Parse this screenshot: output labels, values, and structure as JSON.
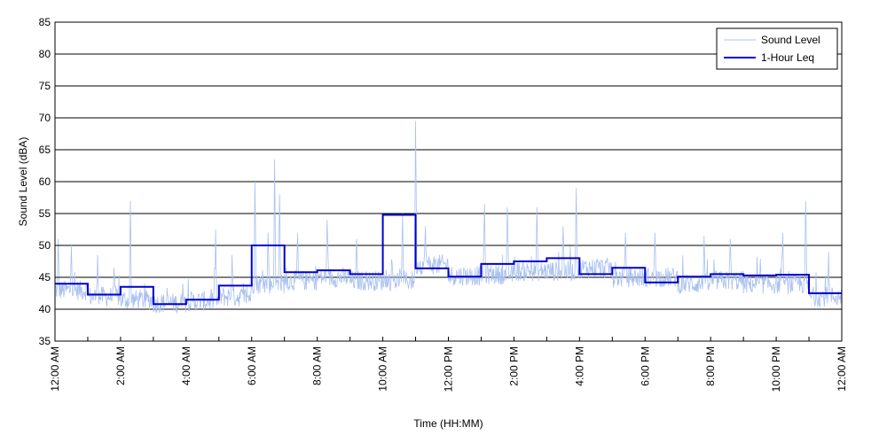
{
  "chart_data": {
    "type": "line",
    "xlabel": "Time (HH:MM)",
    "ylabel": "Sound Level (dBA)",
    "xlim": [
      0,
      24
    ],
    "ylim": [
      35,
      85
    ],
    "y_ticks": [
      35,
      40,
      45,
      50,
      55,
      60,
      65,
      70,
      75,
      80,
      85
    ],
    "x_ticks": [
      0,
      2,
      4,
      6,
      8,
      10,
      12,
      14,
      16,
      18,
      20,
      22,
      24
    ],
    "x_tick_labels": [
      "12:00 AM",
      "2:00 AM",
      "4:00 AM",
      "6:00 AM",
      "8:00 AM",
      "10:00 AM",
      "12:00 PM",
      "2:00 PM",
      "4:00 PM",
      "6:00 PM",
      "8:00 PM",
      "10:00 PM",
      "12:00 AM"
    ],
    "grid": "horizontal",
    "legend_position": "top-right",
    "series": [
      {
        "name": "Sound Level",
        "color": "#a9c0f0",
        "style": "thin-line",
        "hourly_base": [
          42.5,
          41.5,
          41.0,
          40.5,
          40.8,
          41.5,
          43.5,
          44.0,
          44.5,
          44.0,
          44.0,
          46.5,
          44.8,
          45.0,
          45.5,
          45.5,
          46.0,
          44.5,
          44.5,
          43.5,
          44.0,
          43.5,
          43.5,
          41.5
        ],
        "spikes": [
          [
            0.1,
            51
          ],
          [
            0.5,
            50
          ],
          [
            1.3,
            48.5
          ],
          [
            1.8,
            46.5
          ],
          [
            2.3,
            57
          ],
          [
            3.9,
            44
          ],
          [
            4.9,
            52.5
          ],
          [
            5.4,
            48.5
          ],
          [
            6.1,
            60
          ],
          [
            6.5,
            52
          ],
          [
            6.7,
            63.5
          ],
          [
            6.85,
            58
          ],
          [
            7.4,
            52
          ],
          [
            8.3,
            54
          ],
          [
            9.2,
            51
          ],
          [
            10.6,
            55
          ],
          [
            11.0,
            69.5
          ],
          [
            11.3,
            53
          ],
          [
            13.1,
            56.5
          ],
          [
            13.8,
            56
          ],
          [
            14.7,
            56
          ],
          [
            15.5,
            53
          ],
          [
            15.9,
            59
          ],
          [
            17.4,
            52
          ],
          [
            18.3,
            52
          ],
          [
            19.8,
            51.5
          ],
          [
            20.6,
            51
          ],
          [
            22.2,
            52
          ],
          [
            22.9,
            57
          ],
          [
            23.6,
            49
          ]
        ]
      },
      {
        "name": "1-Hour Leq",
        "color": "#0000cc",
        "style": "step",
        "x": [
          0,
          1,
          2,
          3,
          4,
          5,
          6,
          7,
          8,
          9,
          10,
          11,
          12,
          13,
          14,
          15,
          16,
          17,
          18,
          19,
          20,
          21,
          22,
          23
        ],
        "values": [
          44.0,
          42.3,
          43.5,
          40.8,
          41.5,
          43.7,
          50.0,
          45.8,
          46.1,
          45.5,
          54.8,
          46.4,
          45.1,
          47.1,
          47.5,
          48.0,
          45.5,
          46.5,
          44.2,
          45.1,
          45.5,
          45.3,
          45.4,
          42.5
        ]
      }
    ]
  }
}
